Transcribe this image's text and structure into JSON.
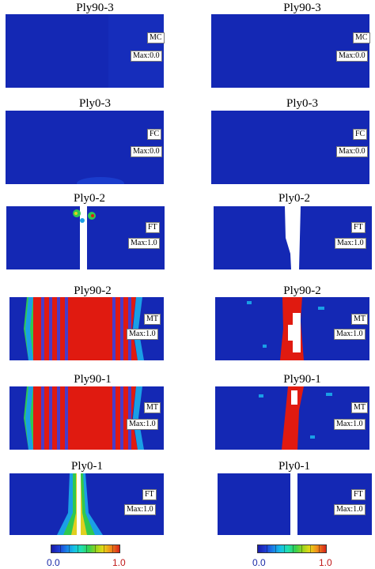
{
  "panels": [
    {
      "title": "Ply90-3",
      "mode": "MC",
      "max": "Max:0.0"
    },
    {
      "title": "Ply90-3",
      "mode": "MC",
      "max": "Max:0.0"
    },
    {
      "title": "Ply0-3",
      "mode": "FC",
      "max": "Max:0.0"
    },
    {
      "title": "Ply0-3",
      "mode": "FC",
      "max": "Max:0.0"
    },
    {
      "title": "Ply0-2",
      "mode": "FT",
      "max": "Max:1.0"
    },
    {
      "title": "Ply0-2",
      "mode": "FT",
      "max": "Max:1.0"
    },
    {
      "title": "Ply90-2",
      "mode": "MT",
      "max": "Max:1.0"
    },
    {
      "title": "Ply90-2",
      "mode": "MT",
      "max": "Max:1.0"
    },
    {
      "title": "Ply90-1",
      "mode": "MT",
      "max": "Max:1.0"
    },
    {
      "title": "Ply90-1",
      "mode": "MT",
      "max": "Max:1.0"
    },
    {
      "title": "Ply0-1",
      "mode": "FT",
      "max": "Max:1.0"
    },
    {
      "title": "Ply0-1",
      "mode": "FT",
      "max": "Max:1.0"
    }
  ],
  "legend": {
    "min": "0.0",
    "max": "1.0"
  },
  "colors": {
    "low": "#1428b4",
    "high": "#e01a10",
    "mid_green": "#30c850",
    "white_crack": "#ffffff"
  }
}
